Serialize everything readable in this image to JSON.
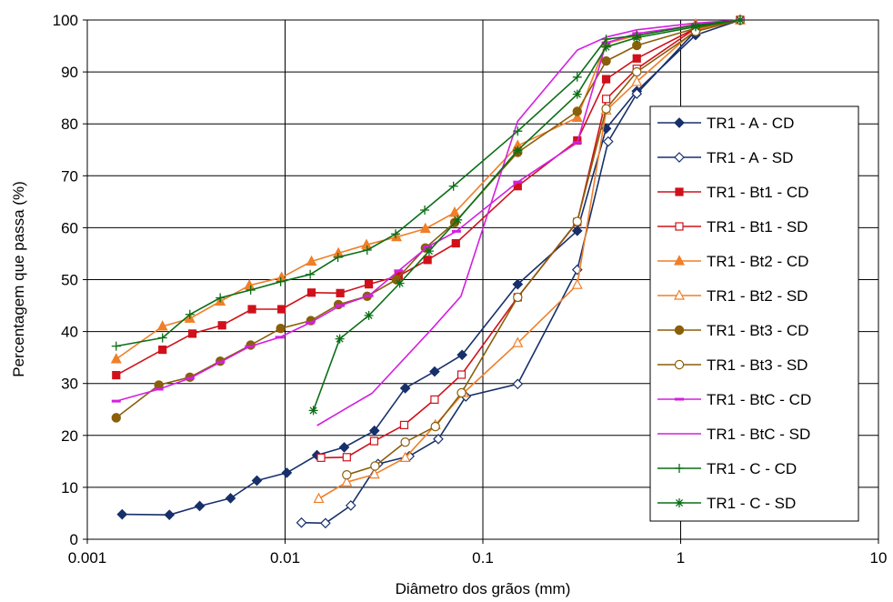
{
  "chart_data": {
    "type": "line",
    "xlabel": "Diâmetro dos grãos (mm)",
    "ylabel": "Percentagem que passa (%)",
    "x_scale": "log",
    "xlim": [
      0.001,
      10
    ],
    "ylim": [
      0,
      100
    ],
    "grid": "major gridlines on both axes",
    "legend_position": "right",
    "x_ticks": [
      {
        "value": 0.001,
        "label": "0.001"
      },
      {
        "value": 0.01,
        "label": "0.01"
      },
      {
        "value": 0.1,
        "label": "0.1"
      },
      {
        "value": 1,
        "label": "1"
      },
      {
        "value": 10,
        "label": "10"
      }
    ],
    "y_ticks": [
      0,
      10,
      20,
      30,
      40,
      50,
      60,
      70,
      80,
      90,
      100
    ],
    "series": [
      {
        "name": "TR1 - A - CD",
        "color": "#17306b",
        "marker": "diamond",
        "filled": true,
        "points": [
          [
            0.0015,
            4.8
          ],
          [
            0.0026,
            4.7
          ],
          [
            0.0037,
            6.4
          ],
          [
            0.0053,
            7.9
          ],
          [
            0.0072,
            11.3
          ],
          [
            0.0102,
            12.8
          ],
          [
            0.0145,
            16.2
          ],
          [
            0.0199,
            17.7
          ],
          [
            0.0283,
            20.9
          ],
          [
            0.0405,
            29.1
          ],
          [
            0.057,
            32.3
          ],
          [
            0.0785,
            35.5
          ],
          [
            0.15,
            49.1
          ],
          [
            0.3,
            59.4
          ],
          [
            0.42,
            79.1
          ],
          [
            0.6,
            86.3
          ],
          [
            1.19,
            97.1
          ],
          [
            2.0,
            100
          ]
        ]
      },
      {
        "name": "TR1 - A - SD",
        "color": "#17306b",
        "marker": "diamond",
        "filled": false,
        "points": [
          [
            0.0121,
            3.2
          ],
          [
            0.016,
            3.1
          ],
          [
            0.0215,
            6.5
          ],
          [
            0.0295,
            14.5
          ],
          [
            0.0425,
            16.0
          ],
          [
            0.0595,
            19.3
          ],
          [
            0.082,
            27.5
          ],
          [
            0.15,
            29.9
          ],
          [
            0.3,
            51.9
          ],
          [
            0.43,
            76.6
          ],
          [
            0.6,
            85.8
          ],
          [
            1.19,
            97.9
          ],
          [
            2.0,
            100
          ]
        ]
      },
      {
        "name": "TR1 - Bt1 - CD",
        "color": "#d0111b",
        "marker": "square",
        "filled": true,
        "points": [
          [
            0.0014,
            31.6
          ],
          [
            0.0024,
            36.5
          ],
          [
            0.0034,
            39.6
          ],
          [
            0.0048,
            41.2
          ],
          [
            0.0068,
            44.3
          ],
          [
            0.0096,
            44.3
          ],
          [
            0.0136,
            47.5
          ],
          [
            0.019,
            47.4
          ],
          [
            0.0265,
            49.1
          ],
          [
            0.0375,
            50.7
          ],
          [
            0.0525,
            53.8
          ],
          [
            0.073,
            57.0
          ],
          [
            0.15,
            68.0
          ],
          [
            0.3,
            76.8
          ],
          [
            0.42,
            88.6
          ],
          [
            0.6,
            92.6
          ],
          [
            1.19,
            98.4
          ],
          [
            2.0,
            100
          ]
        ]
      },
      {
        "name": "TR1 - Bt1 - SD",
        "color": "#d0111b",
        "marker": "square",
        "filled": false,
        "points": [
          [
            0.0152,
            15.7
          ],
          [
            0.0205,
            15.8
          ],
          [
            0.0282,
            18.9
          ],
          [
            0.04,
            22.0
          ],
          [
            0.057,
            26.9
          ],
          [
            0.078,
            31.7
          ],
          [
            0.15,
            46.6
          ],
          [
            0.3,
            61.1
          ],
          [
            0.42,
            84.8
          ],
          [
            0.6,
            90.6
          ],
          [
            1.19,
            98.4
          ],
          [
            2.0,
            100
          ]
        ]
      },
      {
        "name": "TR1 - Bt2 - CD",
        "color": "#f07f28",
        "marker": "triangle",
        "filled": true,
        "points": [
          [
            0.0014,
            34.7
          ],
          [
            0.0024,
            41.0
          ],
          [
            0.0033,
            42.5
          ],
          [
            0.0047,
            45.8
          ],
          [
            0.0066,
            48.9
          ],
          [
            0.0096,
            50.4
          ],
          [
            0.0136,
            53.5
          ],
          [
            0.0186,
            55.1
          ],
          [
            0.0258,
            56.7
          ],
          [
            0.0366,
            58.2
          ],
          [
            0.0512,
            59.8
          ],
          [
            0.072,
            62.9
          ],
          [
            0.15,
            75.8
          ],
          [
            0.3,
            81.2
          ],
          [
            0.42,
            95.5
          ],
          [
            0.6,
            97.0
          ],
          [
            1.19,
            99.2
          ],
          [
            2.0,
            100
          ]
        ]
      },
      {
        "name": "TR1 - Bt2 - SD",
        "color": "#f07f28",
        "marker": "triangle",
        "filled": false,
        "points": [
          [
            0.0148,
            7.8
          ],
          [
            0.0205,
            11.0
          ],
          [
            0.0283,
            12.5
          ],
          [
            0.0405,
            15.7
          ],
          [
            0.0575,
            22.0
          ],
          [
            0.08,
            28.2
          ],
          [
            0.15,
            37.8
          ],
          [
            0.3,
            49.0
          ],
          [
            0.42,
            82.6
          ],
          [
            0.6,
            88.1
          ],
          [
            1.19,
            98.1
          ],
          [
            2.0,
            100
          ]
        ]
      },
      {
        "name": "TR1 - Bt3 - CD",
        "color": "#8a5f0a",
        "marker": "circle",
        "filled": true,
        "points": [
          [
            0.0014,
            23.4
          ],
          [
            0.0023,
            29.7
          ],
          [
            0.0033,
            31.2
          ],
          [
            0.0047,
            34.3
          ],
          [
            0.0067,
            37.4
          ],
          [
            0.0095,
            40.6
          ],
          [
            0.0135,
            42.1
          ],
          [
            0.0186,
            45.2
          ],
          [
            0.026,
            46.8
          ],
          [
            0.0365,
            50.0
          ],
          [
            0.0512,
            56.1
          ],
          [
            0.072,
            61.0
          ],
          [
            0.15,
            74.5
          ],
          [
            0.3,
            82.4
          ],
          [
            0.42,
            92.1
          ],
          [
            0.6,
            95.1
          ],
          [
            1.19,
            98.4
          ],
          [
            2.0,
            100
          ]
        ]
      },
      {
        "name": "TR1 - Bt3 - SD",
        "color": "#8a5f0a",
        "marker": "circle",
        "filled": false,
        "points": [
          [
            0.0205,
            12.4
          ],
          [
            0.0285,
            14.1
          ],
          [
            0.0405,
            18.7
          ],
          [
            0.0575,
            21.7
          ],
          [
            0.078,
            28.2
          ],
          [
            0.15,
            46.6
          ],
          [
            0.3,
            61.2
          ],
          [
            0.42,
            82.9
          ],
          [
            0.6,
            90.0
          ],
          [
            1.19,
            97.8
          ],
          [
            2.0,
            100
          ]
        ]
      },
      {
        "name": "TR1 - BtC - CD",
        "color": "#d41fe0",
        "marker": "dash",
        "filled": true,
        "points": [
          [
            0.0014,
            26.6
          ],
          [
            0.0023,
            28.9
          ],
          [
            0.0033,
            31.0
          ],
          [
            0.0047,
            34.1
          ],
          [
            0.0066,
            37.1
          ],
          [
            0.0094,
            38.9
          ],
          [
            0.0134,
            41.7
          ],
          [
            0.019,
            45.0
          ],
          [
            0.0265,
            46.9
          ],
          [
            0.0375,
            51.7
          ],
          [
            0.0525,
            56.3
          ],
          [
            0.0735,
            59.3
          ],
          [
            0.15,
            68.8
          ],
          [
            0.3,
            76.4
          ],
          [
            0.42,
            95.6
          ],
          [
            0.6,
            97.4
          ],
          [
            1.19,
            99.0
          ],
          [
            2.0,
            100
          ]
        ]
      },
      {
        "name": "TR1 - BtC - SD",
        "color": "#d41fe0",
        "marker": "dash",
        "filled": false,
        "points": [
          [
            0.0145,
            21.9
          ],
          [
            0.0199,
            25.0
          ],
          [
            0.0275,
            28.1
          ],
          [
            0.0392,
            34.4
          ],
          [
            0.0555,
            40.6
          ],
          [
            0.0775,
            46.8
          ],
          [
            0.15,
            80.5
          ],
          [
            0.3,
            94.2
          ],
          [
            0.42,
            96.7
          ],
          [
            0.6,
            98.1
          ],
          [
            1.19,
            99.4
          ],
          [
            2.0,
            100
          ]
        ]
      },
      {
        "name": "TR1 - C - CD",
        "color": "#0b6e16",
        "marker": "plus",
        "filled": true,
        "points": [
          [
            0.0014,
            37.2
          ],
          [
            0.0024,
            38.8
          ],
          [
            0.0033,
            43.3
          ],
          [
            0.0047,
            46.5
          ],
          [
            0.0067,
            48.0
          ],
          [
            0.0095,
            49.6
          ],
          [
            0.0134,
            51.0
          ],
          [
            0.0185,
            54.3
          ],
          [
            0.026,
            55.7
          ],
          [
            0.0362,
            58.8
          ],
          [
            0.0508,
            63.4
          ],
          [
            0.071,
            68.0
          ],
          [
            0.15,
            78.6
          ],
          [
            0.3,
            89.0
          ],
          [
            0.42,
            96.3
          ],
          [
            0.6,
            97.0
          ],
          [
            1.19,
            99.0
          ],
          [
            2.0,
            100
          ]
        ]
      },
      {
        "name": "TR1 - C - SD",
        "color": "#0b6e16",
        "marker": "asterisk",
        "filled": true,
        "points": [
          [
            0.0139,
            24.8
          ],
          [
            0.0189,
            38.6
          ],
          [
            0.0265,
            43.1
          ],
          [
            0.038,
            49.3
          ],
          [
            0.0535,
            55.5
          ],
          [
            0.0745,
            61.5
          ],
          [
            0.15,
            74.9
          ],
          [
            0.3,
            85.7
          ],
          [
            0.42,
            94.8
          ],
          [
            0.6,
            96.6
          ],
          [
            1.19,
            98.7
          ],
          [
            2.0,
            100
          ]
        ]
      }
    ]
  }
}
